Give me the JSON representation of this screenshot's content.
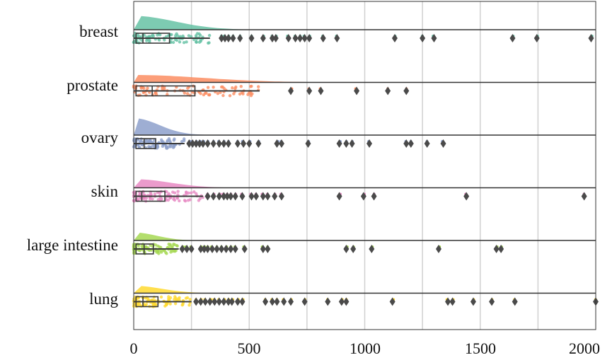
{
  "chart_data": {
    "type": "raincloud",
    "orientation": "horizontal",
    "xlim": [
      0,
      2000
    ],
    "x_ticks": [
      0,
      500,
      1000,
      1500,
      2000
    ],
    "x_tick_labels": [
      "0",
      "500",
      "1000",
      "1500",
      "2000"
    ],
    "grid_x": true,
    "grid_x_values": [
      250,
      500,
      750,
      1000,
      1250,
      1500,
      1750
    ],
    "categories": [
      "breast",
      "prostate",
      "ovary",
      "skin",
      "large intestine",
      "lung"
    ],
    "series": [
      {
        "category": "breast",
        "color": "#66c2a5",
        "box": {
          "q1": 10,
          "median": 40,
          "q3": 155,
          "whisker_low": 0,
          "whisker_high": 330
        },
        "kde_peak": 0.75,
        "outliers": [
          380,
          395,
          410,
          430,
          460,
          510,
          560,
          600,
          615,
          670,
          700,
          720,
          740,
          760,
          820,
          880,
          1130,
          1250,
          1300,
          1640,
          1745,
          1980
        ]
      },
      {
        "category": "prostate",
        "color": "#fc8d62",
        "box": {
          "q1": 10,
          "median": 80,
          "q3": 265,
          "whisker_low": 0,
          "whisker_high": 545
        },
        "kde_peak": 0.25,
        "outliers": [
          680,
          760,
          810,
          965,
          1100,
          1180
        ]
      },
      {
        "category": "ovary",
        "color": "#8da0cb",
        "box": {
          "q1": 10,
          "median": 45,
          "q3": 95,
          "whisker_low": 0,
          "whisker_high": 220
        },
        "kde_peak": 1.0,
        "outliers": [
          240,
          255,
          270,
          285,
          300,
          320,
          345,
          370,
          390,
          410,
          450,
          475,
          500,
          540,
          620,
          640,
          755,
          890,
          920,
          945,
          1020,
          1180,
          1200,
          1270,
          1340
        ]
      },
      {
        "category": "skin",
        "color": "#e78ac3",
        "box": {
          "q1": 10,
          "median": 35,
          "q3": 135,
          "whisker_low": 0,
          "whisker_high": 300
        },
        "kde_peak": 0.35,
        "outliers": [
          320,
          345,
          370,
          390,
          405,
          420,
          440,
          470,
          510,
          530,
          560,
          580,
          610,
          640,
          890,
          995,
          1040,
          1440,
          1950
        ]
      },
      {
        "category": "large intestine",
        "color": "#a6d854",
        "box": {
          "q1": 10,
          "median": 45,
          "q3": 85,
          "whisker_low": 0,
          "whisker_high": 195
        },
        "kde_peak": 0.3,
        "outliers": [
          210,
          230,
          250,
          290,
          305,
          320,
          340,
          360,
          380,
          400,
          420,
          440,
          480,
          560,
          580,
          920,
          950,
          1030,
          1320,
          1570,
          1590
        ]
      },
      {
        "category": "lung",
        "color": "#ffd92f",
        "box": {
          "q1": 10,
          "median": 40,
          "q3": 105,
          "whisker_low": 0,
          "whisker_high": 250
        },
        "kde_peak": 0.25,
        "outliers": [
          270,
          290,
          310,
          330,
          350,
          370,
          390,
          410,
          425,
          450,
          470,
          570,
          600,
          620,
          650,
          680,
          740,
          840,
          900,
          920,
          1120,
          1360,
          1380,
          1470,
          1550,
          1650,
          2000
        ]
      }
    ]
  }
}
